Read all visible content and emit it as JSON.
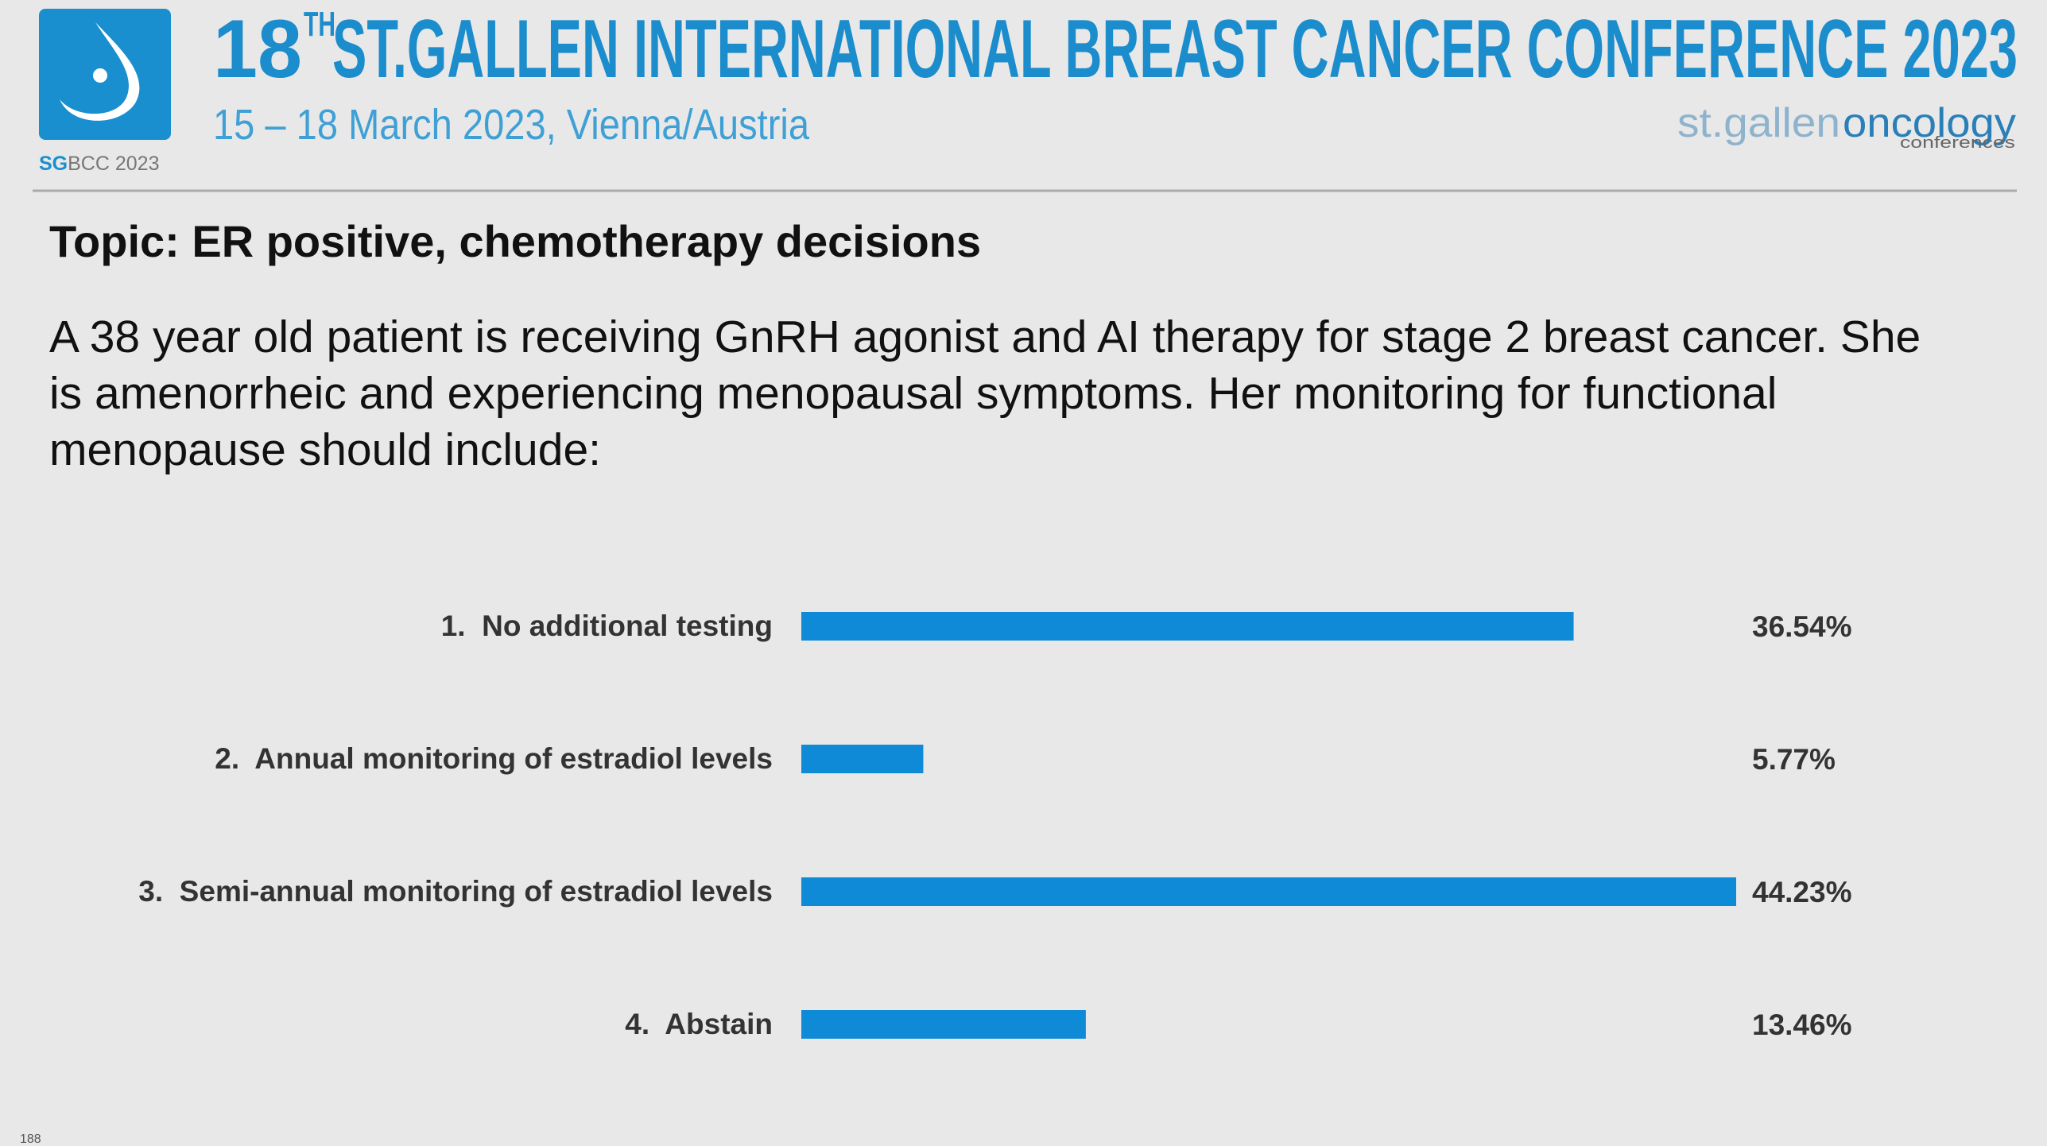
{
  "header": {
    "title_number": "18",
    "title_superscript": "TH",
    "title": "ST.GALLEN INTERNATIONAL BREAST CANCER CONFERENCE 2023",
    "subtitle": "15 – 18 March 2023, Vienna/Austria",
    "logo_left_a": "SG",
    "logo_left_b": "BCC 2023",
    "logo_right_a": "st.gallen",
    "logo_right_b": "oncology",
    "logo_right_c": "conferences"
  },
  "topic": "Topic: ER positive, chemotherapy decisions",
  "question": [
    "A 38 year old patient is receiving GnRH agonist and AI therapy for stage 2 breast cancer. She",
    "is amenorrheic and experiencing menopausal symptoms. Her monitoring for functional",
    "menopause should include:"
  ],
  "chart_data": {
    "type": "hbar",
    "categories": [
      "1.  No additional testing",
      "2.  Annual monitoring of estradiol levels",
      "3.  Semi-annual monitoring of estradiol levels",
      "4.  Abstain"
    ],
    "values": [
      36.54,
      5.77,
      44.23,
      13.46
    ],
    "value_labels": [
      "36.54%",
      "5.77%",
      "44.23%",
      "13.46%"
    ],
    "color": "#0e8ad6"
  },
  "slide_number": "188"
}
